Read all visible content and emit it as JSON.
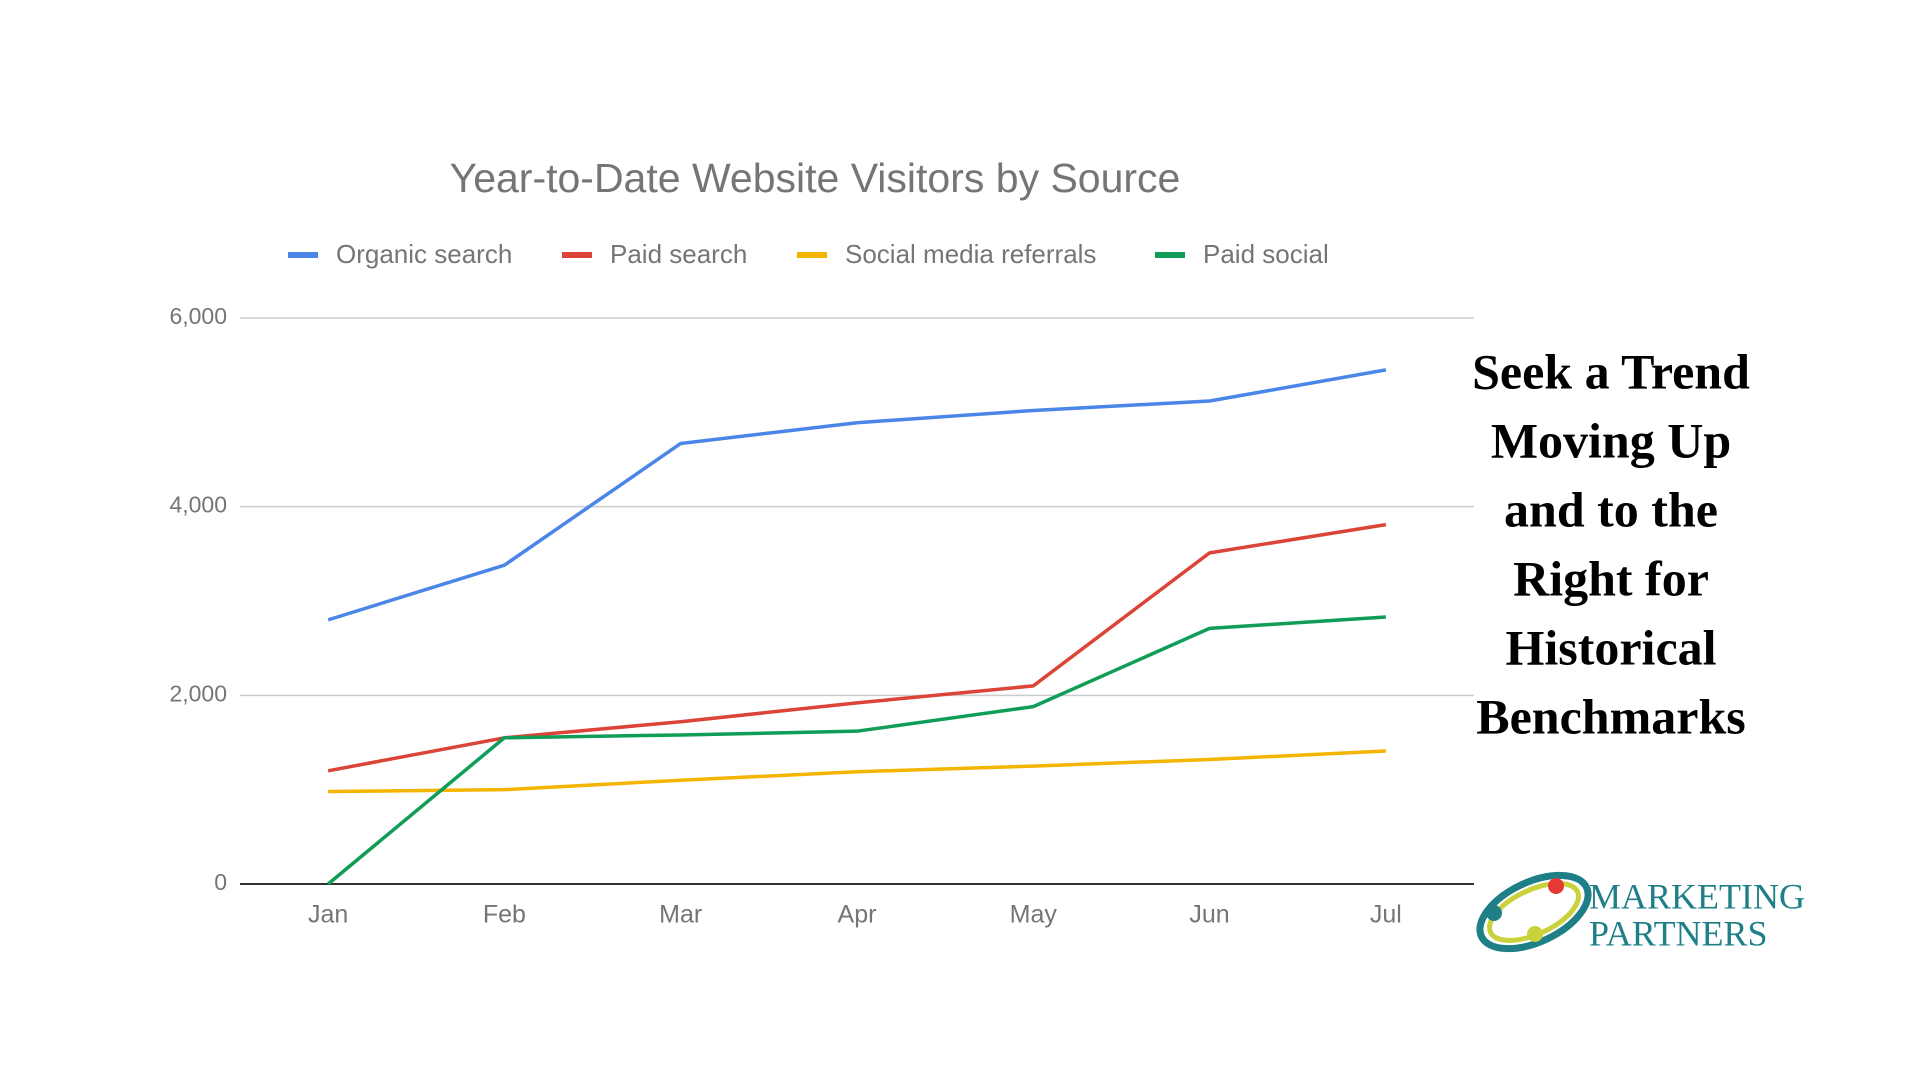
{
  "chart_data": {
    "type": "line",
    "title": "Year-to-Date Website Visitors by Source",
    "categories": [
      "Jan",
      "Feb",
      "Mar",
      "Apr",
      "May",
      "Jun",
      "Jul"
    ],
    "series": [
      {
        "name": "Organic search",
        "color": "#4a86e8",
        "values": [
          2800,
          3380,
          4670,
          4890,
          5020,
          5120,
          5450
        ]
      },
      {
        "name": "Paid search",
        "color": "#db4437",
        "values": [
          1200,
          1550,
          1720,
          1920,
          2100,
          3510,
          3810
        ]
      },
      {
        "name": "Social media referrals",
        "color": "#f4b400",
        "values": [
          980,
          1000,
          1100,
          1190,
          1250,
          1320,
          1410
        ]
      },
      {
        "name": "Paid social",
        "color": "#0f9d58",
        "values": [
          0,
          1550,
          1580,
          1620,
          1880,
          2710,
          2830
        ]
      }
    ],
    "ylim": [
      0,
      6000
    ],
    "yticks": [
      0,
      {
        "value": 2000,
        "label": "2,000"
      },
      {
        "value": 4000,
        "label": "4,000"
      },
      {
        "value": 6000,
        "label": "6,000"
      }
    ],
    "grid": true,
    "legend": "top",
    "annotation": [
      "Seek a Trend",
      "Moving Up",
      "and to the",
      "Right for",
      "Historical",
      "Benchmarks"
    ]
  },
  "logo": [
    "MARKETING",
    "PARTNERS"
  ]
}
